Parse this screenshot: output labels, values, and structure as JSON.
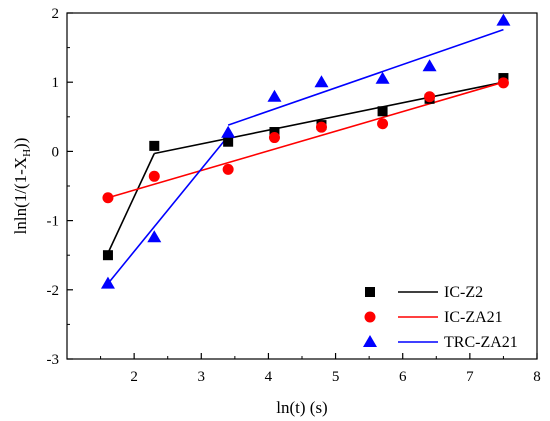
{
  "chart_data": {
    "type": "scatter",
    "title": "",
    "xlabel": "ln(t) (s)",
    "ylabel_main": "lnln(1/(1-X",
    "ylabel_sub": "H",
    "ylabel_end": "))",
    "xlim": [
      1,
      8
    ],
    "ylim": [
      -3,
      2
    ],
    "xticks": [
      2,
      3,
      4,
      5,
      6,
      7,
      8
    ],
    "yticks": [
      -3,
      -2,
      -1,
      0,
      1,
      2
    ],
    "grid": false,
    "legend_position": "bottom-right",
    "series": [
      {
        "name": "IC-Z2",
        "color": "#000000",
        "marker": "square",
        "points": [
          [
            1.61,
            -1.5
          ],
          [
            2.3,
            0.08
          ],
          [
            3.4,
            0.14
          ],
          [
            4.09,
            0.28
          ],
          [
            4.79,
            0.38
          ],
          [
            5.7,
            0.58
          ],
          [
            6.4,
            0.76
          ],
          [
            7.5,
            1.06
          ]
        ],
        "fit_lines": [
          [
            [
              1.61,
              -1.47
            ],
            [
              2.3,
              -0.03
            ]
          ],
          [
            [
              2.3,
              -0.03
            ],
            [
              7.5,
              1.0
            ]
          ]
        ]
      },
      {
        "name": "IC-ZA21",
        "color": "#ff0000",
        "marker": "circle",
        "points": [
          [
            1.61,
            -0.67
          ],
          [
            2.3,
            -0.36
          ],
          [
            3.4,
            -0.26
          ],
          [
            4.09,
            0.2
          ],
          [
            4.79,
            0.35
          ],
          [
            5.7,
            0.4
          ],
          [
            6.4,
            0.79
          ],
          [
            7.5,
            0.99
          ]
        ],
        "fit_lines": [
          [
            [
              1.61,
              -0.67
            ],
            [
              7.5,
              1.0
            ]
          ]
        ]
      },
      {
        "name": "TRC-ZA21",
        "color": "#0000ff",
        "marker": "triangle",
        "points": [
          [
            1.61,
            -1.91
          ],
          [
            2.3,
            -1.24
          ],
          [
            3.4,
            0.27
          ],
          [
            4.09,
            0.79
          ],
          [
            4.79,
            1.0
          ],
          [
            5.7,
            1.05
          ],
          [
            6.4,
            1.23
          ],
          [
            7.5,
            1.89
          ]
        ],
        "fit_lines": [
          [
            [
              1.61,
              -1.91
            ],
            [
              3.4,
              0.22
            ]
          ],
          [
            [
              3.4,
              0.38
            ],
            [
              7.5,
              1.76
            ]
          ]
        ]
      }
    ]
  }
}
